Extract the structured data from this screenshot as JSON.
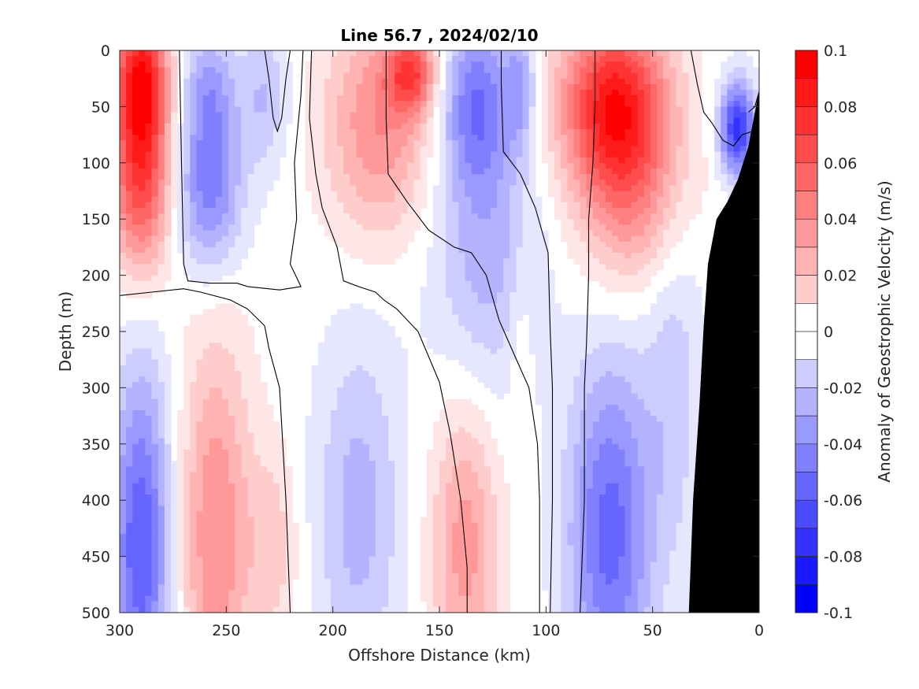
{
  "chart_data": {
    "type": "heatmap",
    "subtype": "filled-contour-section",
    "title": "Line 56.7 , 2024/02/10",
    "xlabel": "Offshore Distance (km)",
    "ylabel": "Depth (m)",
    "xlim": [
      300,
      0
    ],
    "ylim": [
      0,
      500
    ],
    "x_ticks": [
      300,
      250,
      200,
      150,
      100,
      50,
      0
    ],
    "y_ticks": [
      0,
      50,
      100,
      150,
      200,
      250,
      300,
      350,
      400,
      450,
      500
    ],
    "y_reversed": true,
    "colorbar": {
      "label": "Anomaly of Geostrophic Velocity (m/s)",
      "range": [
        -0.1,
        0.1
      ],
      "ticks": [
        0.1,
        0.08,
        0.06,
        0.04,
        0.02,
        0,
        -0.02,
        -0.04,
        -0.06,
        -0.08,
        -0.1
      ],
      "levels": 20,
      "colors": {
        "positive": "#ff0000",
        "zero": "#ffffff",
        "negative": "#0000ff"
      }
    },
    "contour_line_level": 0,
    "bathymetry_color": "#000000",
    "bathymetry": {
      "distance_km": [
        0,
        0,
        5,
        10,
        15,
        20,
        24,
        26,
        28,
        31,
        33
      ],
      "depth_m": [
        500,
        35,
        85,
        115,
        135,
        150,
        190,
        245,
        315,
        400,
        500
      ]
    },
    "velocity_features": [
      {
        "x_km": 290,
        "depth_m": 25,
        "value": 0.09,
        "sx": 9,
        "sy": 45
      },
      {
        "x_km": 290,
        "depth_m": 120,
        "value": 0.07,
        "sx": 10,
        "sy": 55
      },
      {
        "x_km": 258,
        "depth_m": 35,
        "value": -0.035,
        "sx": 9,
        "sy": 40
      },
      {
        "x_km": 258,
        "depth_m": 125,
        "value": -0.05,
        "sx": 11,
        "sy": 50
      },
      {
        "x_km": 232,
        "depth_m": 40,
        "value": -0.025,
        "sx": 8,
        "sy": 45
      },
      {
        "x_km": 178,
        "depth_m": 65,
        "value": 0.045,
        "sx": 18,
        "sy": 70
      },
      {
        "x_km": 163,
        "depth_m": 20,
        "value": 0.06,
        "sx": 8,
        "sy": 25
      },
      {
        "x_km": 133,
        "depth_m": 45,
        "value": -0.05,
        "sx": 12,
        "sy": 55
      },
      {
        "x_km": 128,
        "depth_m": 180,
        "value": -0.03,
        "sx": 18,
        "sy": 90
      },
      {
        "x_km": 112,
        "depth_m": 30,
        "value": -0.03,
        "sx": 5,
        "sy": 40
      },
      {
        "x_km": 68,
        "depth_m": 45,
        "value": 0.085,
        "sx": 18,
        "sy": 55
      },
      {
        "x_km": 60,
        "depth_m": 130,
        "value": 0.04,
        "sx": 18,
        "sy": 60
      },
      {
        "x_km": 10,
        "depth_m": 70,
        "value": -0.08,
        "sx": 6,
        "sy": 30
      },
      {
        "x_km": 290,
        "depth_m": 440,
        "value": -0.065,
        "sx": 10,
        "sy": 110
      },
      {
        "x_km": 255,
        "depth_m": 430,
        "value": 0.045,
        "sx": 12,
        "sy": 120
      },
      {
        "x_km": 228,
        "depth_m": 440,
        "value": 0.02,
        "sx": 8,
        "sy": 60
      },
      {
        "x_km": 188,
        "depth_m": 410,
        "value": -0.03,
        "sx": 14,
        "sy": 110
      },
      {
        "x_km": 138,
        "depth_m": 440,
        "value": 0.04,
        "sx": 11,
        "sy": 90
      },
      {
        "x_km": 112,
        "depth_m": 250,
        "value": 0.012,
        "sx": 4,
        "sy": 60
      },
      {
        "x_km": 70,
        "depth_m": 430,
        "value": -0.06,
        "sx": 14,
        "sy": 110
      },
      {
        "x_km": 40,
        "depth_m": 290,
        "value": -0.02,
        "sx": 10,
        "sy": 120
      }
    ],
    "zero_contours": [
      [
        [
          272,
          0
        ],
        [
          271,
          100
        ],
        [
          270,
          190
        ],
        [
          268,
          205
        ],
        [
          258,
          207
        ],
        [
          245,
          207
        ],
        [
          240,
          210
        ],
        [
          225,
          213
        ],
        [
          215,
          210
        ],
        [
          220,
          190
        ],
        [
          217,
          150
        ],
        [
          218,
          100
        ],
        [
          215,
          40
        ],
        [
          214,
          0
        ]
      ],
      [
        [
          300,
          218
        ],
        [
          285,
          215
        ],
        [
          270,
          212
        ],
        [
          262,
          215
        ],
        [
          248,
          222
        ],
        [
          240,
          230
        ],
        [
          232,
          245
        ],
        [
          230,
          265
        ],
        [
          225,
          300
        ],
        [
          222,
          400
        ],
        [
          220,
          500
        ]
      ],
      [
        [
          232,
          0
        ],
        [
          230,
          25
        ],
        [
          228,
          60
        ],
        [
          226,
          72
        ],
        [
          224,
          60
        ],
        [
          222,
          25
        ],
        [
          220,
          0
        ]
      ],
      [
        [
          210,
          0
        ],
        [
          211,
          60
        ],
        [
          208,
          110
        ],
        [
          205,
          140
        ],
        [
          198,
          175
        ],
        [
          195,
          205
        ],
        [
          188,
          210
        ],
        [
          180,
          215
        ],
        [
          176,
          222
        ],
        [
          170,
          230
        ],
        [
          160,
          250
        ],
        [
          150,
          295
        ],
        [
          145,
          340
        ],
        [
          140,
          400
        ],
        [
          137,
          460
        ],
        [
          137,
          500
        ]
      ],
      [
        [
          175,
          0
        ],
        [
          175,
          60
        ],
        [
          174,
          110
        ],
        [
          165,
          135
        ],
        [
          155,
          160
        ],
        [
          143,
          175
        ],
        [
          135,
          180
        ],
        [
          128,
          200
        ],
        [
          122,
          240
        ],
        [
          115,
          270
        ],
        [
          108,
          300
        ],
        [
          104,
          350
        ],
        [
          103,
          400
        ],
        [
          103,
          500
        ]
      ],
      [
        [
          121,
          0
        ],
        [
          121,
          30
        ],
        [
          120,
          90
        ],
        [
          112,
          110
        ],
        [
          105,
          140
        ],
        [
          102,
          160
        ],
        [
          99,
          180
        ],
        [
          98,
          250
        ],
        [
          97,
          300
        ],
        [
          97,
          400
        ],
        [
          98,
          500
        ]
      ],
      [
        [
          77,
          0
        ],
        [
          77,
          50
        ],
        [
          78,
          100
        ],
        [
          80,
          150
        ],
        [
          80,
          200
        ],
        [
          81,
          260
        ],
        [
          82,
          300
        ],
        [
          82,
          400
        ],
        [
          84,
          500
        ]
      ],
      [
        [
          32,
          0
        ],
        [
          29,
          30
        ],
        [
          26,
          55
        ],
        [
          22,
          65
        ],
        [
          17,
          80
        ],
        [
          12,
          85
        ],
        [
          8,
          75
        ],
        [
          0,
          70
        ]
      ],
      [
        [
          17,
          150
        ],
        [
          14,
          200
        ],
        [
          12,
          250
        ],
        [
          10,
          300
        ],
        [
          8,
          360
        ],
        [
          6,
          400
        ],
        [
          5,
          450
        ],
        [
          4,
          500
        ]
      ],
      [
        [
          0,
          15
        ],
        [
          -1,
          30
        ],
        [
          2,
          50
        ],
        [
          5,
          55
        ]
      ]
    ]
  }
}
